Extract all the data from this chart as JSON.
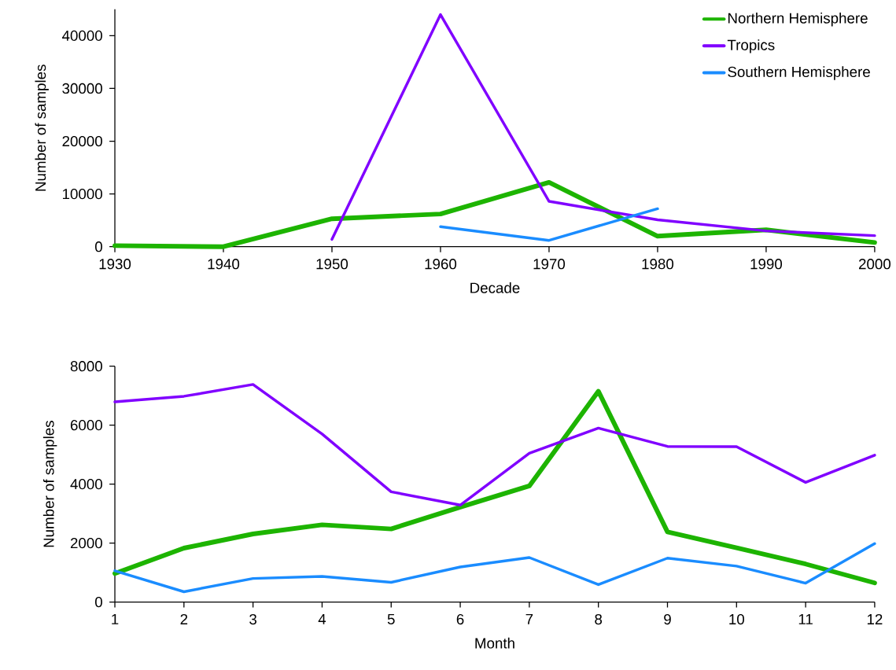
{
  "chart_data": [
    {
      "type": "line",
      "xlabel": "Decade",
      "ylabel": "Number of samples",
      "x": [
        1930,
        1940,
        1950,
        1960,
        1970,
        1980,
        1990,
        2000
      ],
      "xlim": [
        1930,
        2000
      ],
      "xticks": [
        1930,
        1940,
        1950,
        1960,
        1970,
        1980,
        1990,
        2000
      ],
      "ylim": [
        0,
        45000
      ],
      "yticks": [
        0,
        10000,
        20000,
        30000,
        40000
      ],
      "grid": false,
      "legend": "top right",
      "marker": "none",
      "line_style": "solid",
      "series": [
        {
          "name": "Northern Hemisphere",
          "color": "#1db400",
          "values": [
            200,
            0,
            5300,
            6200,
            12200,
            2000,
            3200,
            800
          ]
        },
        {
          "name": "Tropics",
          "color": "#8000ff",
          "values": [
            null,
            null,
            1400,
            44000,
            8600,
            5100,
            3000,
            2100
          ]
        },
        {
          "name": "Southern Hemisphere",
          "color": "#1a8cff",
          "values": [
            null,
            null,
            null,
            3800,
            1200,
            7200,
            null,
            null
          ]
        }
      ]
    },
    {
      "type": "line",
      "xlabel": "Month",
      "ylabel": "Number of samples",
      "x": [
        1,
        2,
        3,
        4,
        5,
        6,
        7,
        8,
        9,
        10,
        11,
        12
      ],
      "xlim": [
        1,
        12
      ],
      "xticks": [
        1,
        2,
        3,
        4,
        5,
        6,
        7,
        8,
        9,
        10,
        11,
        12
      ],
      "ylim": [
        0,
        8000
      ],
      "yticks": [
        0,
        2000,
        4000,
        6000,
        8000
      ],
      "grid": false,
      "legend": false,
      "marker": "none",
      "line_style": "solid",
      "series": [
        {
          "color": "#1db400",
          "values": [
            970,
            1830,
            2310,
            2620,
            2480,
            3220,
            3940,
            7150,
            2380,
            1840,
            1290,
            650
          ]
        },
        {
          "color": "#8000ff",
          "values": [
            6790,
            6980,
            7380,
            5700,
            3740,
            3290,
            5050,
            5900,
            5280,
            5270,
            4060,
            4980
          ]
        },
        {
          "color": "#1a8cff",
          "values": [
            1060,
            350,
            800,
            870,
            670,
            1190,
            1510,
            590,
            1490,
            1220,
            640,
            1980
          ]
        }
      ]
    }
  ]
}
